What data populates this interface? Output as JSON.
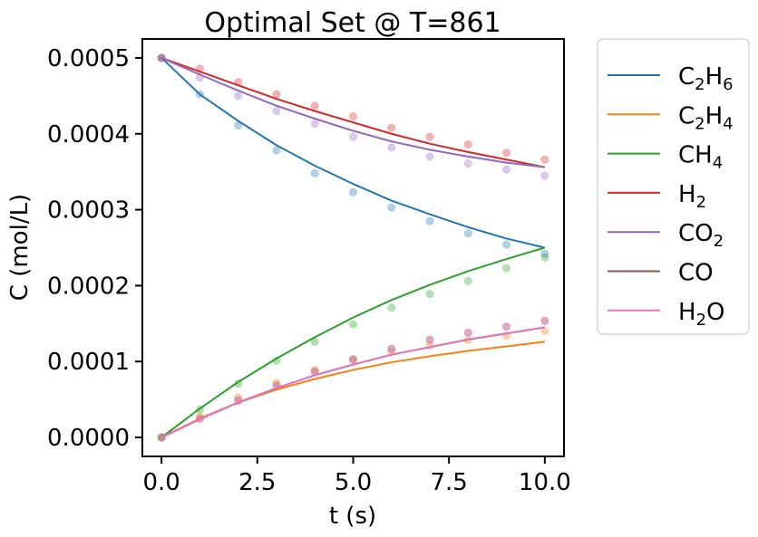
{
  "chart_data": {
    "type": "scatter",
    "title": "Optimal Set @ T=861",
    "xlabel": "t (s)",
    "ylabel": "C (mol/L)",
    "xlim": [
      -0.5,
      10.5
    ],
    "ylim": [
      -2.5e-05,
      0.000525
    ],
    "xticks": [
      0.0,
      2.5,
      5.0,
      7.5,
      10.0
    ],
    "xtick_labels": [
      "0.0",
      "2.5",
      "5.0",
      "7.5",
      "10.0"
    ],
    "yticks": [
      0.0,
      0.0001,
      0.0002,
      0.0003,
      0.0004,
      0.0005
    ],
    "ytick_labels": [
      "0.0000",
      "0.0001",
      "0.0002",
      "0.0003",
      "0.0004",
      "0.0005"
    ],
    "grid": false,
    "legend_placement": "outside upper right",
    "x": [
      0,
      1,
      2,
      3,
      4,
      5,
      6,
      7,
      8,
      9,
      10
    ],
    "series": [
      {
        "name": "C2H6",
        "label_base": [
          "C",
          "H",
          ""
        ],
        "label_sub": [
          "2",
          "6",
          ""
        ],
        "color": "#1f77b4",
        "fit": [
          0.0005,
          0.000452,
          0.000417,
          0.000385,
          0.000358,
          0.000334,
          0.000312,
          0.000294,
          0.000277,
          0.000262,
          0.00025
        ],
        "observed": [
          0.0005,
          0.000452,
          0.000411,
          0.000378,
          0.000348,
          0.000323,
          0.000303,
          0.000285,
          0.000269,
          0.000254,
          0.000242
        ]
      },
      {
        "name": "C2H4",
        "label_base": [
          "C",
          "H",
          ""
        ],
        "label_sub": [
          "2",
          "4",
          ""
        ],
        "color": "#ff7f0e",
        "fit": [
          0.0,
          2.5e-05,
          4.6e-05,
          6.3e-05,
          7.7e-05,
          8.9e-05,
          9.9e-05,
          0.000107,
          0.000114,
          0.00012,
          0.000126
        ],
        "observed": [
          0.0,
          2.8e-05,
          5.3e-05,
          7.2e-05,
          8.9e-05,
          0.000103,
          0.000113,
          0.000121,
          0.000128,
          0.000134,
          0.00014
        ]
      },
      {
        "name": "CH4",
        "label_base": [
          "CH",
          ""
        ],
        "label_sub": [
          "4",
          ""
        ],
        "color": "#2ca02c",
        "fit": [
          0.0,
          3.8e-05,
          7.3e-05,
          0.000104,
          0.000132,
          0.000158,
          0.000181,
          0.000201,
          0.000219,
          0.000235,
          0.00025
        ],
        "observed": [
          0.0,
          3.7e-05,
          7.1e-05,
          0.000101,
          0.000126,
          0.000149,
          0.000171,
          0.000189,
          0.000206,
          0.000223,
          0.000237
        ]
      },
      {
        "name": "H2",
        "label_base": [
          "H",
          ""
        ],
        "label_sub": [
          "2",
          ""
        ],
        "color": "#d62728",
        "fit": [
          0.0005,
          0.000482,
          0.000464,
          0.000446,
          0.00043,
          0.000415,
          0.0004,
          0.000387,
          0.000376,
          0.000366,
          0.000356
        ],
        "observed": [
          0.0005,
          0.000486,
          0.000468,
          0.000452,
          0.000437,
          0.000423,
          0.000408,
          0.000396,
          0.000386,
          0.000375,
          0.000366
        ]
      },
      {
        "name": "CO2",
        "label_base": [
          "CO",
          ""
        ],
        "label_sub": [
          "2",
          ""
        ],
        "color": "#9467bd",
        "fit": [
          0.0005,
          0.000478,
          0.000457,
          0.000437,
          0.00042,
          0.000404,
          0.00039,
          0.000379,
          0.00037,
          0.000362,
          0.000356
        ],
        "observed": [
          0.0005,
          0.000474,
          0.00045,
          0.00043,
          0.000413,
          0.000396,
          0.000382,
          0.00037,
          0.000361,
          0.000353,
          0.000345
        ]
      },
      {
        "name": "CO",
        "label_base": [
          "CO"
        ],
        "label_sub": [
          ""
        ],
        "color": "#8c564b",
        "fit": [
          0.0,
          2.4e-05,
          4.6e-05,
          6.5e-05,
          8.2e-05,
          9.6e-05,
          0.000109,
          0.000119,
          0.000129,
          0.000137,
          0.000145
        ],
        "observed": [
          0.0,
          2.5e-05,
          4.9e-05,
          6.9e-05,
          8.7e-05,
          0.000103,
          0.000117,
          0.000129,
          0.000138,
          0.000146,
          0.000154
        ]
      },
      {
        "name": "H2O",
        "label_base": [
          "H",
          "O"
        ],
        "label_sub": [
          "2",
          ""
        ],
        "color": "#e377c2",
        "fit": [
          0.0,
          2.4e-05,
          4.6e-05,
          6.5e-05,
          8.2e-05,
          9.6e-05,
          0.000109,
          0.000119,
          0.000129,
          0.000137,
          0.000145
        ],
        "observed": [
          0.0,
          2.4e-05,
          4.8e-05,
          6.8e-05,
          8.6e-05,
          0.000102,
          0.000116,
          0.000128,
          0.000138,
          0.000146,
          0.000153
        ]
      }
    ]
  }
}
